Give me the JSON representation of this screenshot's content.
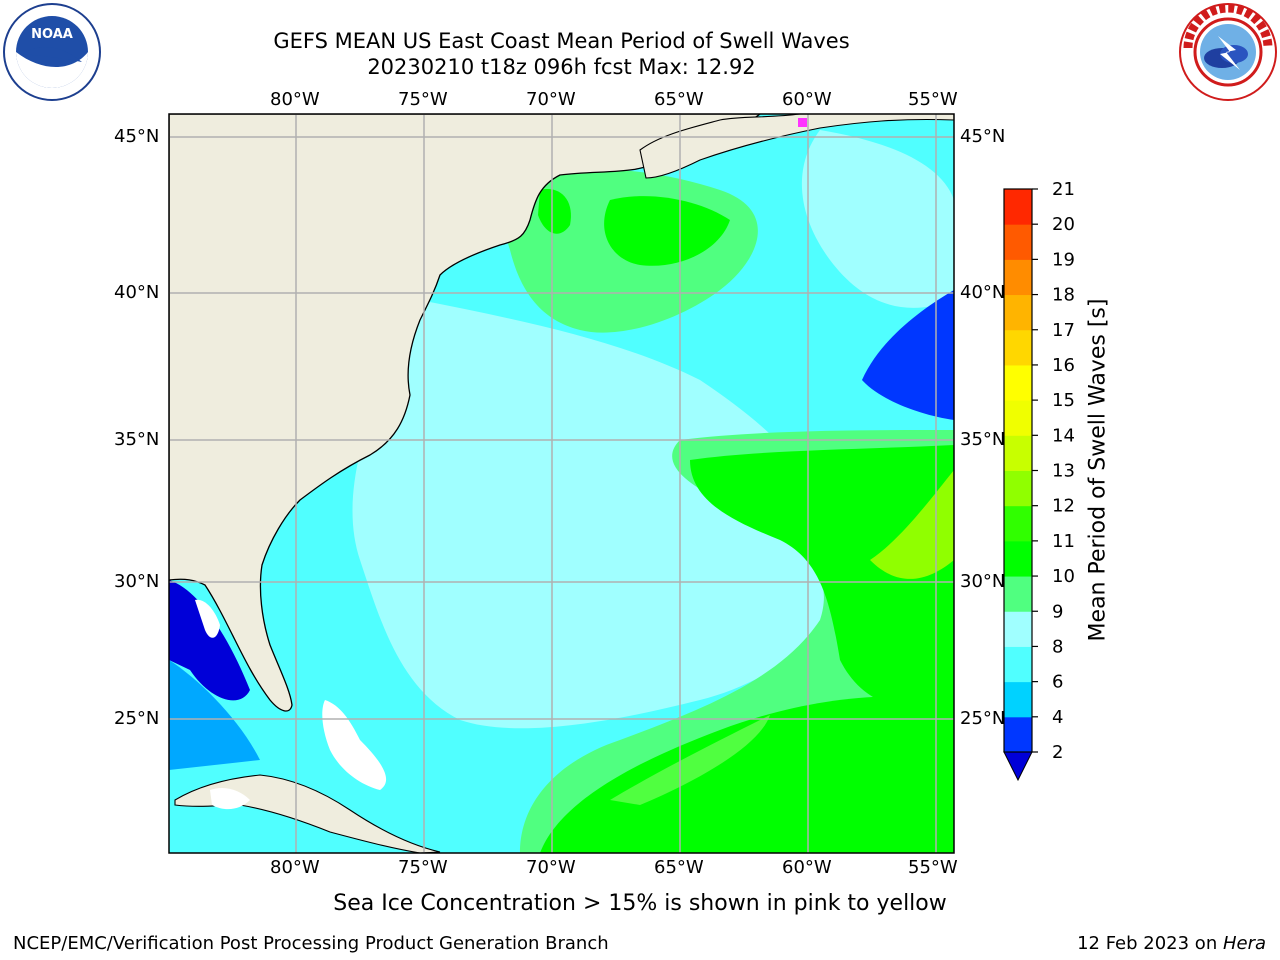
{
  "header": {
    "title_line1": "GEFS MEAN US East Coast Mean Period of Swell Waves",
    "title_line2": "20230210 t18z 096h fcst   Max: 12.92"
  },
  "logos": {
    "noaa_text": "NOAA",
    "noaa_ring_text": "NATIONAL OCEANIC AND ATMOSPHERIC ADMINISTRATION · U.S. DEPARTMENT OF COMMERCE",
    "nws_ring_text": "NATIONAL WEATHER SERVICE"
  },
  "map": {
    "lon_labels": [
      "80°W",
      "75°W",
      "70°W",
      "65°W",
      "60°W",
      "55°W"
    ],
    "lat_labels_left": [
      "45°N",
      "40°N",
      "35°N",
      "30°N",
      "25°N"
    ],
    "lat_labels_right": [
      "45°N",
      "40°N",
      "35°N",
      "30°N",
      "25°N"
    ],
    "colors": {
      "land": "#efedde",
      "grid": "#b0b0b0",
      "coast": "#000000"
    }
  },
  "colorbar": {
    "label": "Mean Period of Swell Waves [s]",
    "ticks": [
      "2",
      "4",
      "6",
      "8",
      "9",
      "10",
      "11",
      "12",
      "13",
      "14",
      "15",
      "16",
      "17",
      "18",
      "19",
      "20",
      "21"
    ],
    "colors": [
      "#0037ff",
      "#00d2ff",
      "#50ffff",
      "#a0ffff",
      "#50ff80",
      "#00ff00",
      "#30ff00",
      "#90ff00",
      "#c8ff00",
      "#f0ff00",
      "#ffff00",
      "#ffd700",
      "#ffb400",
      "#ff8c00",
      "#ff5a00",
      "#ff2800"
    ],
    "under_color": "#0000d8"
  },
  "caption": "Sea Ice Concentration > 15% is shown in pink to yellow",
  "footer": {
    "left": "NCEP/EMC/Verification Post Processing Product Generation Branch",
    "right_prefix": "12 Feb 2023 on ",
    "right_machine": "Hera"
  }
}
